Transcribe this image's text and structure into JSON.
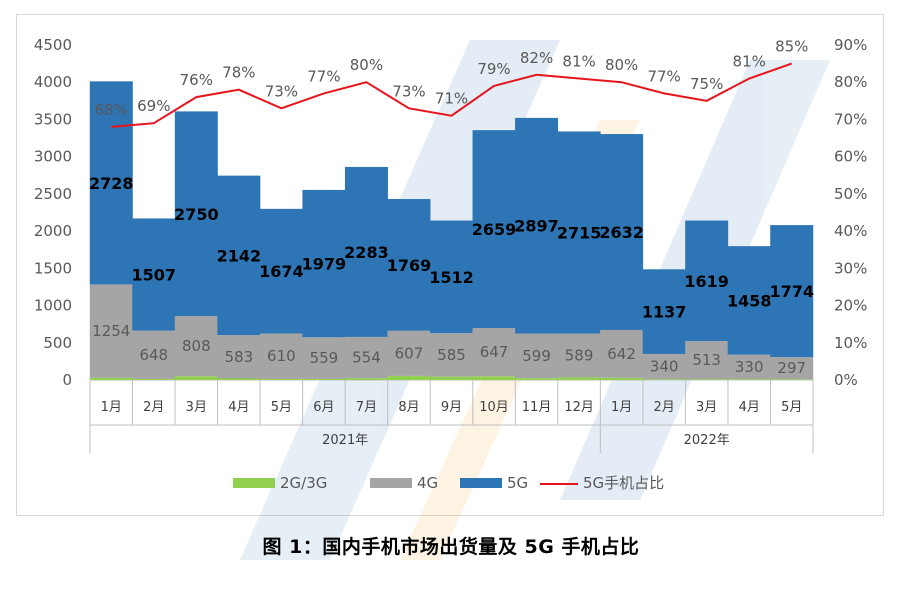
{
  "chart_data": {
    "type": "bar",
    "stacked": true,
    "title": "图 1：国内手机市场出货量及 5G 手机占比",
    "categories": [
      "1月",
      "2月",
      "3月",
      "4月",
      "5月",
      "6月",
      "7月",
      "8月",
      "9月",
      "10月",
      "11月",
      "12月",
      "1月",
      "2月",
      "3月",
      "4月",
      "5月"
    ],
    "groups": [
      {
        "label": "2021年",
        "count": 12
      },
      {
        "label": "2022年",
        "count": 5
      }
    ],
    "series": [
      {
        "name": "2G/3G",
        "color": "#92d050",
        "values": [
          30,
          15,
          50,
          20,
          15,
          15,
          25,
          55,
          45,
          50,
          25,
          35,
          30,
          10,
          10,
          10,
          10
        ]
      },
      {
        "name": "4G",
        "color": "#a5a5a5",
        "values": [
          1254,
          648,
          808,
          583,
          610,
          559,
          554,
          607,
          585,
          647,
          599,
          589,
          642,
          340,
          513,
          330,
          297
        ]
      },
      {
        "name": "5G",
        "color": "#2e75b6",
        "values": [
          2728,
          1507,
          2750,
          2142,
          1674,
          1979,
          2283,
          1769,
          1512,
          2659,
          2897,
          2715,
          2632,
          1137,
          1619,
          1458,
          1774
        ]
      }
    ],
    "line_series": {
      "name": "5G手机占比",
      "color": "#e8141b",
      "values": [
        68,
        69,
        76,
        78,
        73,
        77,
        80,
        73,
        71,
        79,
        82,
        81,
        80,
        77,
        75,
        81,
        85
      ]
    },
    "y_left": {
      "min": 0,
      "max": 4500,
      "step": 500,
      "ticks": [
        "0",
        "500",
        "1000",
        "1500",
        "2000",
        "2500",
        "3000",
        "3500",
        "4000",
        "4500"
      ]
    },
    "y_right": {
      "min": 0,
      "max": 90,
      "step": 10,
      "ticks": [
        "0%",
        "10%",
        "20%",
        "30%",
        "40%",
        "50%",
        "60%",
        "70%",
        "80%",
        "90%"
      ]
    },
    "label_4g": [
      "1254",
      "648",
      "808",
      "583",
      "610",
      "559",
      "554",
      "607",
      "585",
      "647",
      "599",
      "589",
      "642",
      "340",
      "513",
      "330",
      "297"
    ],
    "label_5g": [
      "2728",
      "1507",
      "2750",
      "2142",
      "1674",
      "1979",
      "2283",
      "1769",
      "1512",
      "2659",
      "2897",
      "2715",
      "2632",
      "1137",
      "1619",
      "1458",
      "1774"
    ],
    "label_pct": [
      "68%",
      "69%",
      "76%",
      "78%",
      "73%",
      "77%",
      "80%",
      "73%",
      "71%",
      "79%",
      "82%",
      "81%",
      "80%",
      "77%",
      "75%",
      "81%",
      "85%"
    ],
    "legend": [
      "2G/3G",
      "4G",
      "5G",
      "5G手机占比"
    ],
    "legend_position": "bottom",
    "grid": false
  },
  "caption": "图 1：国内手机市场出货量及 5G 手机占比"
}
